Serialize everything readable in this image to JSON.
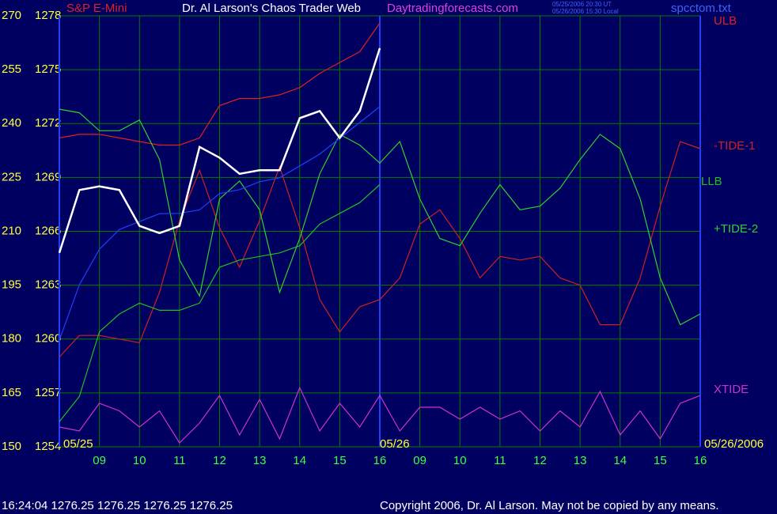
{
  "chart_data": {
    "type": "line",
    "header": "S&P E-Mini",
    "title": "Dr. Al Larson's Chaos Trader Web",
    "site": "Daytradingforecasts.com",
    "stamp_ut": "05/25/2006 20:30 UT",
    "stamp_local": "05/26/2006 15:30 Local",
    "file": "spcctom.txt",
    "status": "16:24:04  1276.25 1276.25 1276.25 1276.25",
    "copyright": "Copyright 2006, Dr. Al Larson. May not be copied by any means.",
    "date_labels": [
      "05/25",
      "05/26",
      "05/26/2006"
    ],
    "grid": true,
    "xlim": [
      8,
      24
    ],
    "xticks": [
      {
        "value": 9,
        "label": "09"
      },
      10,
      11,
      12,
      13,
      14,
      15,
      16,
      {
        "value": 17,
        "label": "09"
      },
      {
        "value": 18,
        "label": "10"
      },
      {
        "value": 19,
        "label": "11"
      },
      {
        "value": 20,
        "label": "12"
      },
      {
        "value": 21,
        "label": "13"
      },
      {
        "value": 22,
        "label": "14"
      },
      {
        "value": 23,
        "label": "15"
      },
      {
        "value": 24,
        "label": "16"
      }
    ],
    "ylim": [
      150,
      270
    ],
    "yticks": [
      150,
      165,
      180,
      195,
      210,
      225,
      240,
      255,
      270
    ],
    "y2lim": [
      1254,
      1278
    ],
    "y2ticks": [
      1254,
      1257,
      1260,
      1263,
      1266,
      1269,
      1272,
      1275,
      1278
    ],
    "x": [
      8,
      8.5,
      9,
      9.5,
      10,
      10.5,
      11,
      11.5,
      12,
      12.5,
      13,
      13.5,
      14,
      14.5,
      15,
      15.5,
      16,
      16.5,
      17,
      17.5,
      18,
      18.5,
      19,
      19.5,
      20,
      20.5,
      21,
      21.5,
      22,
      22.5,
      23,
      23.5,
      24
    ],
    "series": [
      {
        "name": "ULB",
        "color": "#e02020",
        "values": [
          236,
          237,
          237,
          236,
          235,
          234,
          234,
          236,
          245,
          247,
          247,
          248,
          250,
          254,
          257,
          260,
          268,
          null,
          null,
          null,
          null,
          null,
          null,
          null,
          null,
          null,
          null,
          null,
          null,
          null,
          null,
          null,
          null
        ]
      },
      {
        "name": "-TIDE-1",
        "color": "#d02020",
        "values": [
          175,
          181,
          181,
          180,
          179,
          193,
          213,
          227,
          211,
          200,
          213,
          228,
          211,
          191,
          182,
          189,
          191,
          197,
          212,
          216,
          208,
          197,
          203,
          202,
          203,
          197,
          195,
          184,
          184,
          197,
          217,
          235,
          233
        ]
      },
      {
        "name": "LLB",
        "color": "#20c020",
        "values": [
          157,
          164,
          182,
          187,
          190,
          188,
          188,
          190,
          200,
          202,
          203,
          204,
          206,
          212,
          215,
          218,
          223,
          null,
          null,
          null,
          null,
          null,
          null,
          null,
          null,
          null,
          null,
          null,
          null,
          null,
          null,
          null,
          null
        ]
      },
      {
        "name": "+TIDE-2",
        "color": "#30d030",
        "values": [
          244,
          243,
          238,
          238,
          241,
          230,
          202,
          192,
          219,
          224,
          216,
          193,
          208,
          226,
          237,
          234,
          229,
          235,
          219,
          208,
          206,
          215,
          223,
          216,
          217,
          222,
          230,
          237,
          233,
          219,
          197,
          184,
          187
        ]
      },
      {
        "name": "XTIDE",
        "color": "#d030d0",
        "values": [
          155.5,
          154.4,
          162.1,
          160,
          155.5,
          160,
          151.1,
          156.6,
          164.3,
          153.3,
          163.2,
          152.2,
          166.5,
          154.4,
          162.1,
          155.5,
          164.3,
          154.4,
          161,
          161,
          157.7,
          161,
          157.7,
          160,
          154.4,
          160,
          155.5,
          165.4,
          153.3,
          160,
          152.2,
          162.1,
          164.3
        ]
      },
      {
        "color": "#2040ff",
        "values": [
          179.7,
          195.1,
          205,
          210.5,
          212.7,
          214.9,
          215,
          216,
          220.5,
          221.6,
          223.8,
          224.9,
          228.2,
          231.5,
          235.9,
          240.3,
          244.7,
          null,
          null,
          null,
          null,
          null,
          null,
          null,
          null,
          null,
          null,
          null,
          null,
          null,
          null,
          null,
          null
        ]
      },
      {
        "color": "#ffffff",
        "axis": "y2",
        "values": [
          1264.8,
          1268.3,
          1268.5,
          1268.3,
          1266.3,
          1265.9,
          1266.3,
          1270.7,
          1270.1,
          1269.2,
          1269.4,
          1269.4,
          1272.3,
          1272.7,
          1271.2,
          1272.7,
          1276.2,
          null,
          null,
          null,
          null,
          null,
          null,
          null,
          null,
          null,
          null,
          null,
          null,
          null,
          null,
          null,
          null
        ]
      }
    ]
  }
}
